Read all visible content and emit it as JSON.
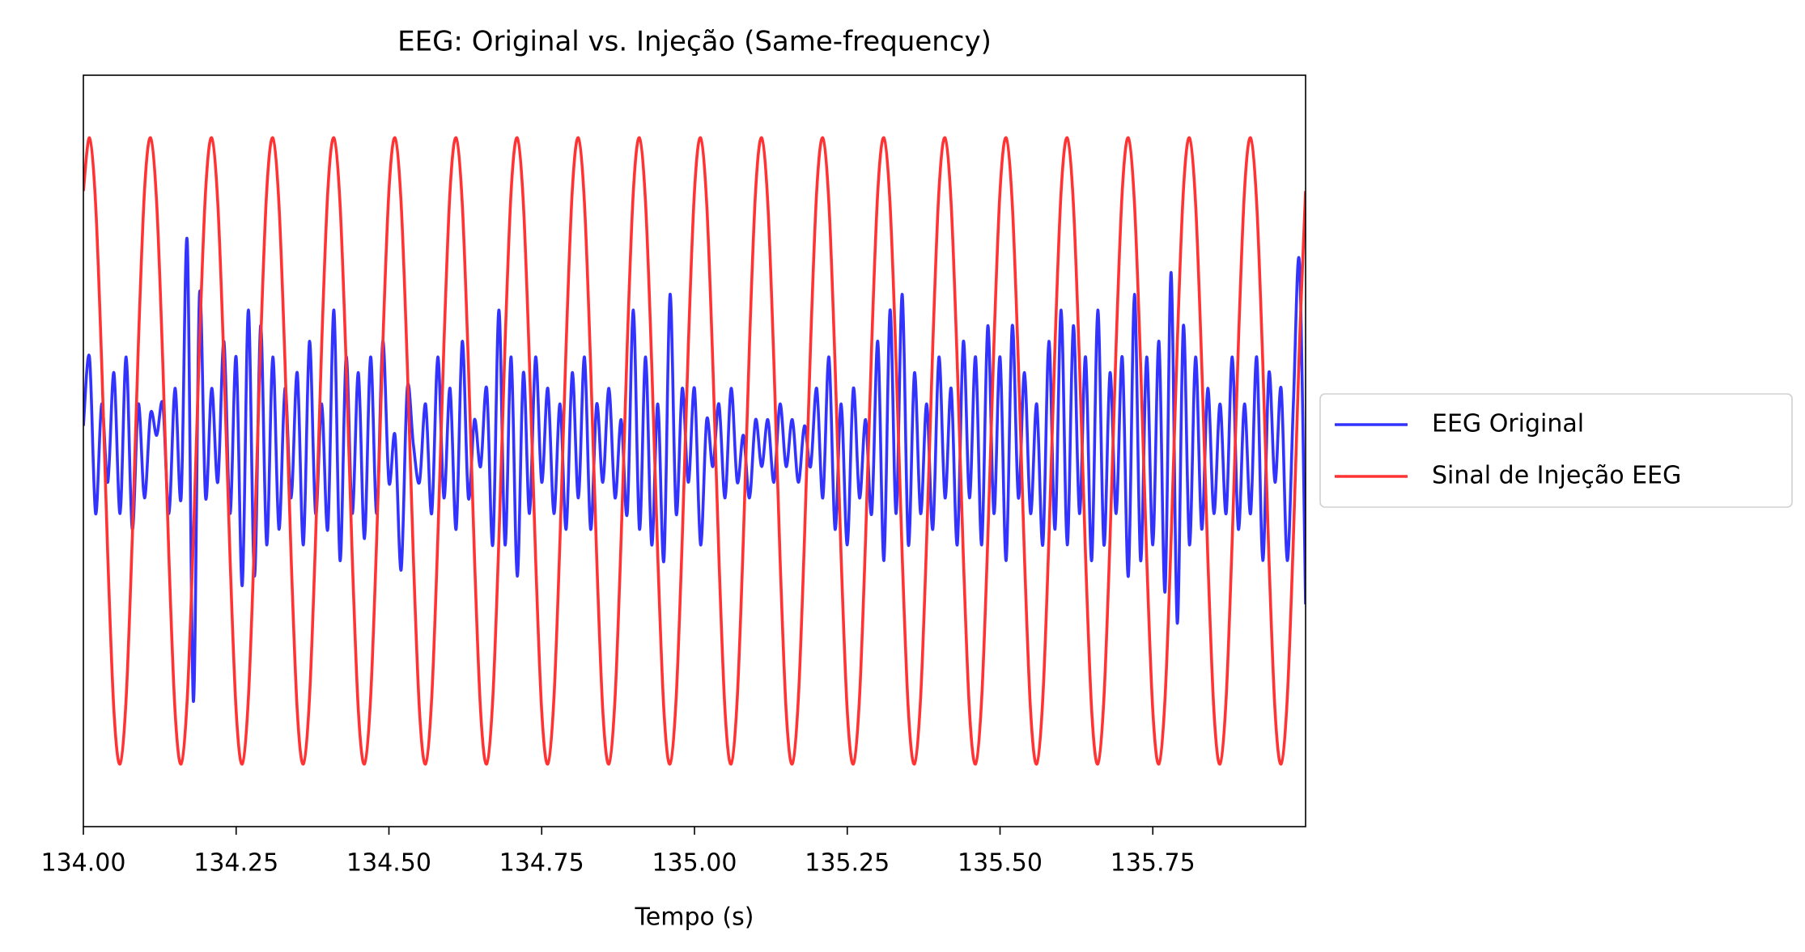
{
  "chart_data": {
    "type": "line",
    "title": "EEG: Original vs. Injeção (Same-frequency)",
    "x_label": "Tempo (s)",
    "xlim": [
      134,
      136
    ],
    "ylim": [
      -1.2,
      1.2
    ],
    "xticks": [
      {
        "value": 134,
        "label": "134.00"
      },
      {
        "value": 134.25,
        "label": "134.25"
      },
      {
        "value": 134.5,
        "label": "134.50"
      },
      {
        "value": 134.75,
        "label": "134.75"
      },
      {
        "value": 135,
        "label": "135.00"
      },
      {
        "value": 135.25,
        "label": "135.25"
      },
      {
        "value": 135.5,
        "label": "135.50"
      },
      {
        "value": 135.75,
        "label": "135.75"
      }
    ],
    "legend": "right",
    "x": [
      134.0,
      134.01,
      134.02,
      134.03,
      134.04,
      134.05,
      134.06,
      134.07,
      134.08,
      134.09,
      134.1,
      134.11,
      134.12,
      134.13,
      134.14,
      134.15,
      134.16,
      134.17,
      134.18,
      134.19,
      134.2,
      134.21,
      134.22,
      134.23,
      134.24,
      134.25,
      134.26,
      134.27,
      134.28,
      134.29,
      134.3,
      134.31,
      134.32,
      134.33,
      134.34,
      134.35,
      134.36,
      134.37,
      134.38,
      134.39,
      134.4,
      134.41,
      134.42,
      134.43,
      134.44,
      134.45,
      134.46,
      134.47,
      134.48,
      134.49,
      134.5,
      134.51,
      134.52,
      134.53,
      134.54,
      134.55,
      134.56,
      134.57,
      134.58,
      134.59,
      134.6,
      134.61,
      134.62,
      134.63,
      134.64,
      134.65,
      134.66,
      134.67,
      134.68,
      134.69,
      134.7,
      134.71,
      134.72,
      134.73,
      134.74,
      134.75,
      134.76,
      134.77,
      134.78,
      134.79,
      134.8,
      134.81,
      134.82,
      134.83,
      134.84,
      134.85,
      134.86,
      134.87,
      134.88,
      134.89,
      134.9,
      134.91,
      134.92,
      134.93,
      134.94,
      134.95,
      134.96,
      134.97,
      134.98,
      134.99,
      135.0,
      135.01,
      135.02,
      135.03,
      135.04,
      135.05,
      135.06,
      135.07,
      135.08,
      135.09,
      135.1,
      135.11,
      135.12,
      135.13,
      135.14,
      135.15,
      135.16,
      135.17,
      135.18,
      135.19,
      135.2,
      135.21,
      135.22,
      135.23,
      135.24,
      135.25,
      135.26,
      135.27,
      135.28,
      135.29,
      135.3,
      135.31,
      135.32,
      135.33,
      135.34,
      135.35,
      135.36,
      135.37,
      135.38,
      135.39,
      135.4,
      135.41,
      135.42,
      135.43,
      135.44,
      135.45,
      135.46,
      135.47,
      135.48,
      135.49,
      135.5,
      135.51,
      135.52,
      135.53,
      135.54,
      135.55,
      135.56,
      135.57,
      135.58,
      135.59,
      135.6,
      135.61,
      135.62,
      135.63,
      135.64,
      135.65,
      135.66,
      135.67,
      135.68,
      135.69,
      135.7,
      135.71,
      135.72,
      135.73,
      135.74,
      135.75,
      135.76,
      135.77,
      135.78,
      135.79,
      135.8,
      135.81,
      135.82,
      135.83,
      135.84,
      135.85,
      135.86,
      135.87,
      135.88,
      135.89,
      135.9,
      135.91,
      135.92,
      135.93,
      135.94,
      135.95,
      135.96,
      135.97,
      135.98,
      135.99,
      136.0
    ],
    "series": [
      {
        "name": "EEG Original",
        "color": "#3333ff",
        "values": [
          0.08,
          0.3,
          -0.2,
          0.15,
          -0.1,
          0.25,
          -0.2,
          0.3,
          -0.25,
          0.15,
          -0.15,
          0.12,
          0.05,
          0.15,
          -0.2,
          0.2,
          -0.15,
          0.67,
          -0.8,
          0.5,
          -0.15,
          0.2,
          -0.1,
          0.35,
          -0.2,
          0.3,
          -0.43,
          0.45,
          -0.4,
          0.4,
          -0.3,
          0.3,
          -0.25,
          0.2,
          -0.15,
          0.25,
          -0.3,
          0.35,
          -0.2,
          0.15,
          -0.25,
          0.45,
          -0.35,
          0.3,
          -0.2,
          0.25,
          -0.28,
          0.3,
          -0.2,
          0.35,
          -0.1,
          0.05,
          -0.38,
          0.2,
          0.02,
          -0.1,
          0.15,
          -0.2,
          0.3,
          -0.15,
          0.2,
          -0.25,
          0.35,
          -0.15,
          0.1,
          -0.05,
          0.2,
          -0.3,
          0.45,
          -0.3,
          0.3,
          -0.4,
          0.25,
          -0.2,
          0.3,
          -0.1,
          0.2,
          -0.2,
          0.15,
          -0.25,
          0.25,
          -0.15,
          0.3,
          -0.25,
          0.15,
          -0.1,
          0.2,
          -0.15,
          0.1,
          -0.2,
          0.45,
          -0.25,
          0.3,
          -0.3,
          0.15,
          -0.35,
          0.5,
          -0.2,
          0.2,
          -0.1,
          0.2,
          -0.3,
          0.1,
          -0.05,
          0.15,
          -0.15,
          0.2,
          -0.1,
          0.05,
          -0.15,
          0.1,
          -0.05,
          0.1,
          -0.1,
          0.15,
          -0.05,
          0.1,
          -0.1,
          0.08,
          -0.05,
          0.2,
          -0.15,
          0.3,
          -0.25,
          0.15,
          -0.3,
          0.2,
          -0.15,
          0.1,
          -0.2,
          0.35,
          -0.35,
          0.45,
          -0.2,
          0.5,
          -0.3,
          0.25,
          -0.2,
          0.15,
          -0.25,
          0.3,
          -0.15,
          0.2,
          -0.3,
          0.35,
          -0.15,
          0.3,
          -0.3,
          0.4,
          -0.2,
          0.3,
          -0.35,
          0.4,
          -0.15,
          0.25,
          -0.2,
          0.15,
          -0.3,
          0.35,
          -0.25,
          0.45,
          -0.3,
          0.4,
          -0.2,
          0.3,
          -0.35,
          0.45,
          -0.3,
          0.25,
          -0.2,
          0.3,
          -0.4,
          0.5,
          -0.35,
          0.3,
          -0.3,
          0.35,
          -0.45,
          0.57,
          -0.55,
          0.4,
          -0.3,
          0.3,
          -0.25,
          0.2,
          -0.2,
          0.15,
          -0.2,
          0.3,
          -0.25,
          0.15,
          -0.2,
          0.3,
          -0.35,
          0.25,
          -0.1,
          0.2,
          -0.35,
          0.15,
          0.6,
          -0.49
        ]
      },
      {
        "name": "Sinal de Injeção EEG",
        "color": "#ff3333",
        "values": [
          0.83,
          1.0,
          0.79,
          0.28,
          -0.34,
          -0.83,
          -1.0,
          -0.79,
          -0.28,
          0.34,
          0.83,
          1.0,
          0.79,
          0.28,
          -0.34,
          -0.83,
          -1.0,
          -0.79,
          -0.28,
          0.34,
          0.83,
          1.0,
          0.79,
          0.28,
          -0.34,
          -0.83,
          -1.0,
          -0.79,
          -0.28,
          0.34,
          0.83,
          1.0,
          0.79,
          0.28,
          -0.34,
          -0.83,
          -1.0,
          -0.79,
          -0.28,
          0.34,
          0.83,
          1.0,
          0.79,
          0.28,
          -0.34,
          -0.83,
          -1.0,
          -0.79,
          -0.28,
          0.34,
          0.83,
          1.0,
          0.79,
          0.28,
          -0.34,
          -0.83,
          -1.0,
          -0.79,
          -0.28,
          0.34,
          0.83,
          1.0,
          0.79,
          0.28,
          -0.34,
          -0.83,
          -1.0,
          -0.79,
          -0.28,
          0.34,
          0.83,
          1.0,
          0.79,
          0.28,
          -0.34,
          -0.83,
          -1.0,
          -0.79,
          -0.28,
          0.34,
          0.83,
          1.0,
          0.79,
          0.28,
          -0.34,
          -0.83,
          -1.0,
          -0.79,
          -0.28,
          0.34,
          0.83,
          1.0,
          0.79,
          0.28,
          -0.34,
          -0.83,
          -1.0,
          -0.79,
          -0.28,
          0.34,
          0.83,
          1.0,
          0.79,
          0.28,
          -0.34,
          -0.83,
          -1.0,
          -0.79,
          -0.28,
          0.34,
          0.83,
          1.0,
          0.79,
          0.28,
          -0.34,
          -0.83,
          -1.0,
          -0.79,
          -0.28,
          0.34,
          0.83,
          1.0,
          0.79,
          0.28,
          -0.34,
          -0.83,
          -1.0,
          -0.79,
          -0.28,
          0.34,
          0.83,
          1.0,
          0.79,
          0.28,
          -0.34,
          -0.83,
          -1.0,
          -0.79,
          -0.28,
          0.34,
          0.83,
          1.0,
          0.79,
          0.28,
          -0.34,
          -0.83,
          -1.0,
          -0.79,
          -0.28,
          0.34,
          0.83,
          1.0,
          0.79,
          0.28,
          -0.34,
          -0.83,
          -1.0,
          -0.79,
          -0.28,
          0.34,
          0.83,
          1.0,
          0.79,
          0.28,
          -0.34,
          -0.83,
          -1.0,
          -0.79,
          -0.28,
          0.34,
          0.83,
          1.0,
          0.79,
          0.28,
          -0.34,
          -0.83,
          -1.0,
          -0.79,
          -0.28,
          0.34,
          0.83,
          1.0,
          0.79,
          0.28,
          -0.34,
          -0.83,
          -1.0,
          -0.79,
          -0.28,
          0.34,
          0.83,
          1.0,
          0.79,
          0.28,
          -0.34,
          -0.83,
          -1.0,
          -0.79,
          -0.28,
          0.34,
          0.83
        ]
      }
    ]
  }
}
